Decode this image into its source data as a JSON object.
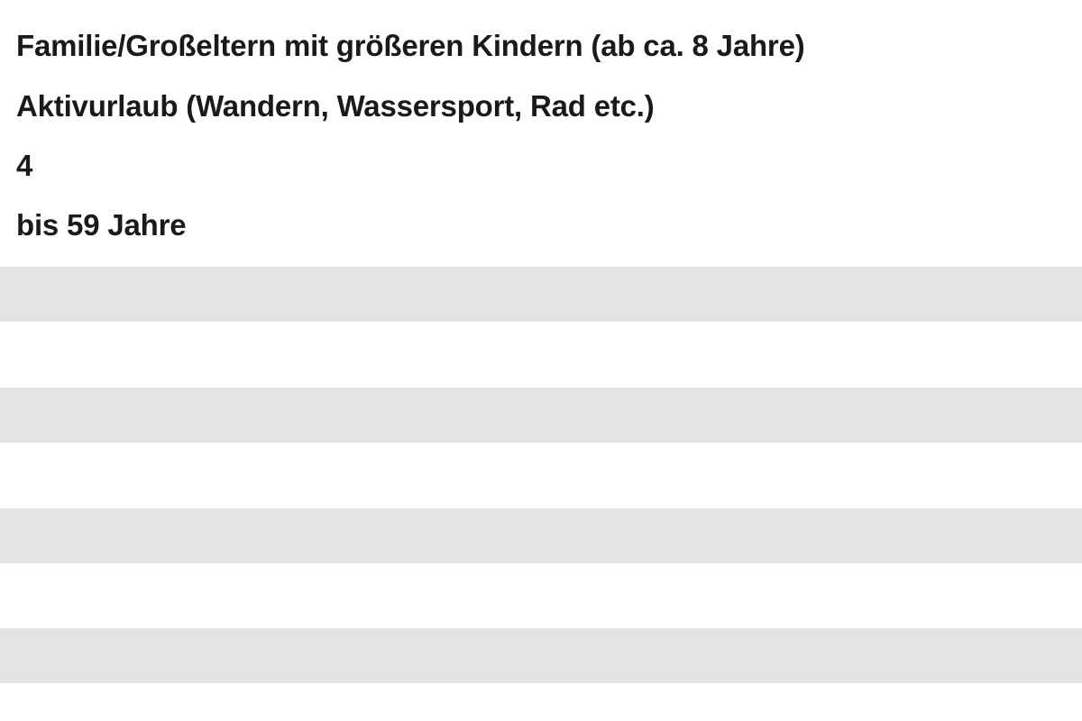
{
  "answers": [
    "Familie/Großeltern mit größeren Kindern (ab ca. 8 Jahre)",
    "Aktivurlaub (Wandern, Wassersport, Rad etc.)",
    "4",
    "bis 59 Jahre"
  ],
  "colors": {
    "background": "#ffffff",
    "text": "#1a1a1a",
    "stripe": "#e3e3e3"
  }
}
